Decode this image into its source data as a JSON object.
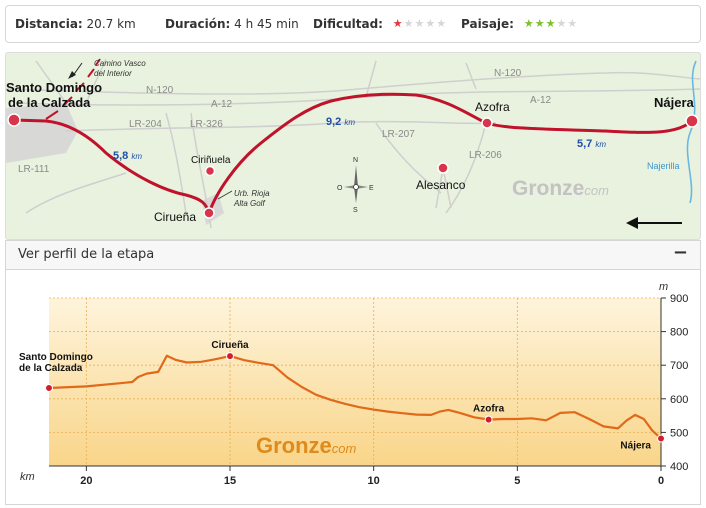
{
  "stats": {
    "distance_label": "Distancia:",
    "distance_value": "20.7 km",
    "duration_label": "Duración:",
    "duration_value": "4 h 45 min",
    "difficulty_label": "Dificultad:",
    "difficulty_level": 1,
    "difficulty_color": "#e8343d",
    "scenery_label": "Paisaje:",
    "scenery_level": 3,
    "scenery_color": "#7cc02b",
    "stars_total": 5
  },
  "map": {
    "places": {
      "santo_line1": "Santo Domingo",
      "santo_line2": "de la Calzada",
      "najera": "Nájera",
      "azofra": "Azofra",
      "alesanco": "Alesanco",
      "cirinuela": "Ciriñuela",
      "cirueña": "Cirueña"
    },
    "roads": {
      "n120_a": "N-120",
      "n120_b": "N-120",
      "a12_a": "A-12",
      "a12_b": "A-12",
      "lr204": "LR-204",
      "lr326": "LR-326",
      "lr111": "LR-111",
      "lr207": "LR-207",
      "lr206": "LR-206"
    },
    "distances": {
      "d1_value": "5,8",
      "d2_value": "9,2",
      "d3_value": "5,7",
      "unit": "km"
    },
    "notes": {
      "camino_line1": "Camino Vasco",
      "camino_line2": "del Interior",
      "urb_line1": "Urb. Rioja",
      "urb_line2": "Alta Golf",
      "river": "Najerilla"
    },
    "compass": {
      "n": "N",
      "s": "S",
      "e": "E",
      "o": "O"
    },
    "brand_main": "Gronze",
    "brand_suffix": "com",
    "route_color": "#c0132b"
  },
  "profile_toggle": {
    "label": "Ver perfil de la etapa",
    "icon": "−"
  },
  "chart_data": {
    "type": "area",
    "xlabel": "km",
    "ylabel": "m",
    "xlim": [
      21.3,
      0
    ],
    "ylim": [
      400,
      900
    ],
    "x_ticks": [
      "20",
      "15",
      "10",
      "5",
      "0"
    ],
    "x_tick_values": [
      20,
      15,
      10,
      5,
      0
    ],
    "y_ticks": [
      "400",
      "500",
      "600",
      "700",
      "800",
      "900"
    ],
    "y_tick_values": [
      400,
      500,
      600,
      700,
      800,
      900
    ],
    "grid": true,
    "series": [
      {
        "x": [
          21.3,
          20.0,
          19.0,
          18.4,
          18.2,
          17.9,
          17.5,
          17.2,
          16.9,
          16.5,
          16.0,
          15.5,
          15.0,
          14.5,
          14.0,
          13.5,
          13.0,
          12.5,
          12.0,
          11.5,
          11.0,
          10.5,
          10.0,
          9.5,
          9.0,
          8.5,
          8.0,
          7.7,
          7.4,
          7.0,
          6.5,
          6.0,
          5.5,
          5.0,
          4.5,
          4.0,
          3.5,
          3.0,
          2.5,
          2.0,
          1.5,
          1.2,
          0.9,
          0.6,
          0.3,
          0.0
        ],
        "y": [
          632,
          637,
          645,
          650,
          665,
          675,
          680,
          728,
          716,
          708,
          710,
          718,
          727,
          715,
          707,
          700,
          663,
          635,
          612,
          597,
          585,
          575,
          568,
          562,
          557,
          553,
          552,
          562,
          567,
          558,
          545,
          538,
          540,
          540,
          542,
          536,
          558,
          560,
          540,
          518,
          512,
          535,
          552,
          540,
          505,
          482
        ]
      }
    ],
    "labeled_points": [
      {
        "name": "Santo Domingo\nde la Calzada",
        "x": 21.3,
        "y": 632
      },
      {
        "name": "Cirueña",
        "x": 15.0,
        "y": 727
      },
      {
        "name": "Azofra",
        "x": 6.0,
        "y": 538
      },
      {
        "name": "Nájera",
        "x": 0.0,
        "y": 482
      }
    ],
    "colors": {
      "line": "#e0691a",
      "fill_top": "#fef4dc",
      "fill_bottom": "#f9d589",
      "marker": "#d41d2c"
    },
    "brand_main": "Gronze",
    "brand_suffix": "com"
  }
}
